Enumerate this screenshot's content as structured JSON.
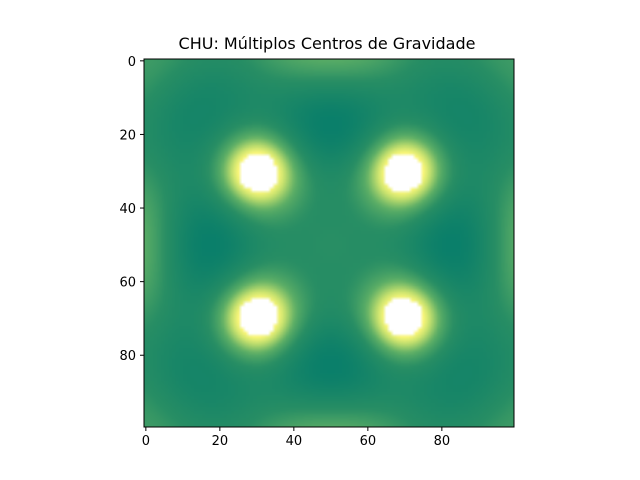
{
  "chart_data": {
    "type": "heatmap",
    "title": "CHU: Múltiplos Centros de Gravidade",
    "xlabel": "",
    "ylabel": "",
    "grid": false,
    "xlim": [
      -0.5,
      99.5
    ],
    "ylim": [
      99.5,
      -0.5
    ],
    "y_axis_inverted": true,
    "x_ticks": [
      0,
      20,
      40,
      60,
      80
    ],
    "y_ticks": [
      0,
      20,
      40,
      60,
      80
    ],
    "grid_size": [
      100,
      100
    ],
    "colormap": "summer-like (dark green to light yellow)",
    "colors": {
      "low": "#0a7f6a",
      "mid": "#5cae66",
      "high": "#fbf77a",
      "saturated": "#ffffff"
    },
    "centers": [
      {
        "x": 30,
        "y": 30,
        "level": "saturated"
      },
      {
        "x": 70,
        "y": 30,
        "level": "saturated"
      },
      {
        "x": 30,
        "y": 70,
        "level": "saturated"
      },
      {
        "x": 70,
        "y": 70,
        "level": "saturated"
      }
    ],
    "secondary_features": [
      {
        "x": 50,
        "y": 50,
        "description": "faint light spot at center"
      },
      {
        "x": 8,
        "y": 8,
        "description": "lighter corner region"
      },
      {
        "x": 92,
        "y": 8,
        "description": "lighter corner region"
      },
      {
        "x": 8,
        "y": 92,
        "description": "lighter corner region"
      },
      {
        "x": 92,
        "y": 92,
        "description": "lighter corner region"
      }
    ]
  }
}
